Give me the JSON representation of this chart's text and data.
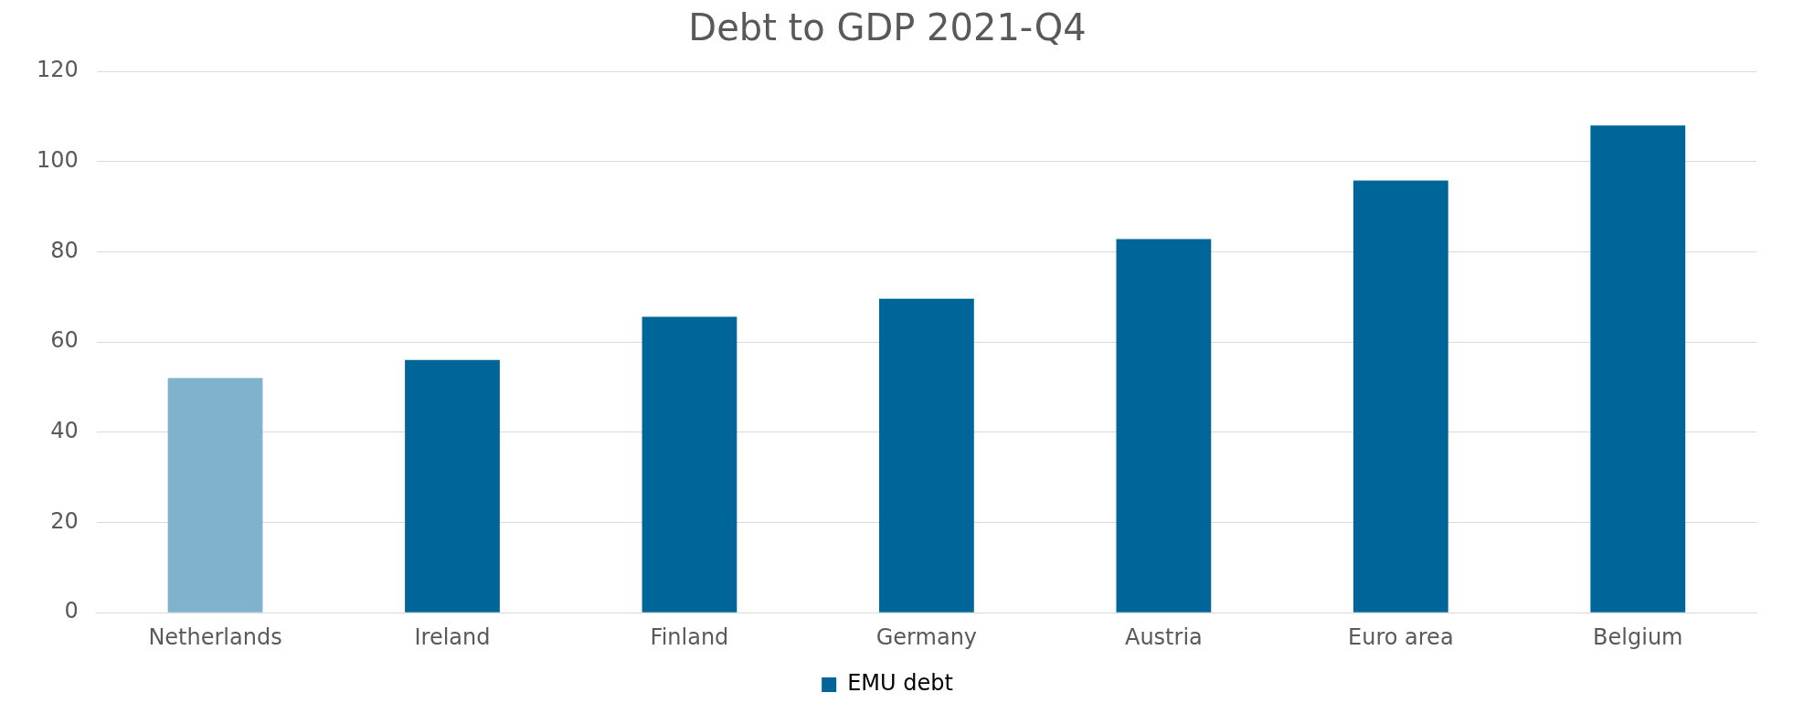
{
  "chart_data": {
    "type": "bar",
    "title": "Debt to GDP 2021-Q4",
    "categories": [
      "Netherlands",
      "Ireland",
      "Finland",
      "Germany",
      "Austria",
      "Euro area",
      "Belgium"
    ],
    "series": [
      {
        "name": "EMU debt",
        "color": "#006699",
        "colors": [
          "#7fb2cc",
          "#006699",
          "#006699",
          "#006699",
          "#006699",
          "#006699",
          "#006699"
        ],
        "values": [
          52,
          56,
          65.6,
          69.6,
          82.8,
          95.8,
          108
        ]
      }
    ],
    "ylim": [
      0,
      120
    ],
    "yticks": [
      0,
      20,
      40,
      60,
      80,
      100,
      120
    ],
    "grid": "y",
    "legend": "bottom"
  }
}
